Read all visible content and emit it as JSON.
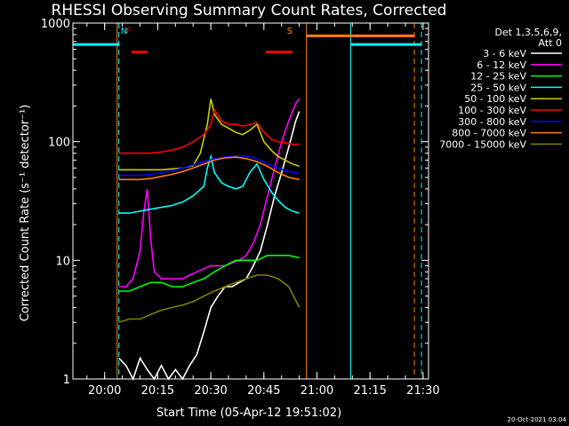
{
  "chart_data": {
    "type": "line",
    "title": "RHESSI Observing Summary Count Rates, Corrected",
    "xlabel": "Start Time (05-Apr-12 19:51:02)",
    "ylabel": "Corrected Count Rate (s⁻¹ detector⁻¹)",
    "yscale": "log",
    "ylim": [
      1,
      1000
    ],
    "xlim_minutes_after_start": [
      0,
      100.5
    ],
    "x_ticks": [
      "20:00",
      "20:15",
      "20:30",
      "20:45",
      "21:00",
      "21:15",
      "21:30"
    ],
    "x_tick_minutes": [
      8.97,
      23.97,
      38.97,
      53.97,
      68.97,
      83.97,
      98.97
    ],
    "y_ticks": [
      "1",
      "10",
      "100",
      "1000"
    ],
    "y_tick_values": [
      1,
      10,
      100,
      1000
    ],
    "legend_title": [
      "Det 1,3,5,6,9,",
      "Att 0"
    ],
    "legend_position": "right",
    "footer_date": "20-Oct-2021 03:04",
    "markers": [
      {
        "label": "N",
        "color": "#00ffff",
        "x": 13.5
      },
      {
        "label": "F",
        "color": "#ff0000",
        "x": 15.0
      },
      {
        "label": "S",
        "color": "#ff8000",
        "x": 60.5
      }
    ],
    "vertical_lines": [
      {
        "x": 0.0,
        "color": "#00ffff",
        "style": "solid"
      },
      {
        "x": 13.0,
        "color": "#00ffff",
        "style": "dashed"
      },
      {
        "x": 12.5,
        "color": "#ff8000",
        "style": "solid"
      },
      {
        "x": 66.0,
        "color": "#ff8000",
        "style": "solid"
      },
      {
        "x": 78.5,
        "color": "#00ffff",
        "style": "solid"
      },
      {
        "x": 96.5,
        "color": "#ff8000",
        "style": "dashed"
      },
      {
        "x": 98.5,
        "color": "#00ffff",
        "style": "dashed"
      }
    ],
    "state_bars": [
      {
        "color": "#00ffff",
        "y": 660,
        "segments": [
          [
            0,
            13
          ],
          [
            78.5,
            98.5
          ]
        ]
      },
      {
        "color": "#ff8000",
        "y": 780,
        "segments": [
          [
            66,
            96.5
          ]
        ]
      },
      {
        "color": "#ff0000",
        "y": 570,
        "segments": [
          [
            16.5,
            21.0
          ],
          [
            54.5,
            62.0
          ]
        ]
      }
    ],
    "series": [
      {
        "name": "3 - 6 keV",
        "color": "#ffffff",
        "x": [
          13,
          15,
          17,
          19,
          21,
          23,
          25,
          27,
          29,
          31,
          33,
          35,
          37,
          39,
          41,
          43,
          45,
          47,
          49,
          51,
          53,
          55,
          57,
          59,
          61,
          63,
          64
        ],
        "y": [
          1.5,
          1.3,
          1.0,
          1.5,
          1.2,
          1.0,
          1.3,
          1.0,
          1.2,
          1.0,
          1.3,
          1.6,
          2.5,
          4,
          5,
          6,
          6,
          6.5,
          7,
          9,
          12,
          20,
          35,
          55,
          90,
          150,
          180
        ]
      },
      {
        "name": "6 - 12 keV",
        "color": "#ff00ff",
        "x": [
          13,
          15,
          17,
          19,
          20,
          21,
          22,
          23,
          25,
          27,
          29,
          31,
          33,
          35,
          37,
          39,
          41,
          43,
          45,
          47,
          49,
          51,
          53,
          55,
          57,
          59,
          61,
          63,
          64
        ],
        "y": [
          6,
          6,
          7,
          12,
          25,
          40,
          15,
          8,
          7,
          7,
          7,
          7,
          7.5,
          8,
          8.5,
          9,
          9,
          9,
          9.5,
          10,
          11,
          14,
          20,
          35,
          60,
          100,
          150,
          210,
          230
        ]
      },
      {
        "name": "12 - 25 keV",
        "color": "#00ff00",
        "x": [
          13,
          16,
          19,
          22,
          25,
          28,
          31,
          34,
          37,
          40,
          43,
          46,
          49,
          52,
          55,
          58,
          61,
          64
        ],
        "y": [
          5.5,
          5.5,
          6,
          6.5,
          6.5,
          6,
          6,
          6.5,
          7,
          8,
          9,
          10,
          10,
          10,
          11,
          11,
          11,
          10.5
        ]
      },
      {
        "name": "25 - 50 keV",
        "color": "#00ffff",
        "x": [
          13,
          16,
          19,
          22,
          25,
          28,
          31,
          34,
          37,
          38,
          39,
          40,
          42,
          44,
          46,
          48,
          50,
          52,
          54,
          56,
          58,
          60,
          62,
          64
        ],
        "y": [
          25,
          25,
          26,
          27,
          28,
          29,
          31,
          35,
          42,
          60,
          75,
          55,
          45,
          42,
          40,
          42,
          55,
          65,
          48,
          38,
          32,
          28,
          26,
          25
        ]
      },
      {
        "name": "50 - 100 keV",
        "color": "#cccc00",
        "x": [
          13,
          16,
          19,
          22,
          25,
          28,
          31,
          34,
          36,
          38,
          39,
          40,
          42,
          44,
          46,
          48,
          50,
          52,
          54,
          56,
          58,
          60,
          62,
          64
        ],
        "y": [
          58,
          58,
          58,
          58,
          58,
          59,
          60,
          63,
          80,
          140,
          230,
          170,
          140,
          130,
          120,
          115,
          125,
          140,
          100,
          85,
          75,
          70,
          65,
          62
        ]
      },
      {
        "name": "100 - 300 keV",
        "color": "#ff0000",
        "x": [
          13,
          16,
          19,
          22,
          25,
          28,
          31,
          34,
          37,
          39,
          40,
          42,
          44,
          46,
          48,
          50,
          52,
          54,
          56,
          58,
          60,
          62,
          64
        ],
        "y": [
          80,
          80,
          80,
          80,
          82,
          85,
          90,
          100,
          115,
          140,
          185,
          150,
          140,
          140,
          135,
          140,
          145,
          120,
          105,
          100,
          98,
          95,
          95
        ]
      },
      {
        "name": "300 - 800 keV",
        "color": "#0000ff",
        "x": [
          13,
          16,
          19,
          22,
          25,
          28,
          31,
          34,
          37,
          40,
          43,
          46,
          49,
          52,
          55,
          58,
          61,
          64
        ],
        "y": [
          52,
          52,
          52,
          53,
          55,
          57,
          60,
          64,
          68,
          72,
          74,
          76,
          76,
          72,
          65,
          60,
          56,
          54
        ]
      },
      {
        "name": "800 - 7000 keV",
        "color": "#ff8000",
        "x": [
          13,
          16,
          19,
          22,
          25,
          28,
          31,
          34,
          37,
          40,
          43,
          46,
          49,
          52,
          55,
          58,
          61,
          64
        ],
        "y": [
          48,
          48,
          48,
          49,
          51,
          53,
          56,
          60,
          65,
          70,
          73,
          74,
          72,
          68,
          62,
          55,
          50,
          48
        ]
      },
      {
        "name": "7000 - 15000 keV",
        "color": "#808000",
        "x": [
          13,
          16,
          19,
          22,
          25,
          28,
          31,
          34,
          37,
          40,
          43,
          46,
          49,
          52,
          55,
          58,
          61,
          64
        ],
        "y": [
          3,
          3.2,
          3.2,
          3.5,
          3.8,
          4,
          4.2,
          4.5,
          5,
          5.5,
          6,
          6.5,
          7,
          7.5,
          7.5,
          7,
          6,
          4
        ]
      }
    ]
  }
}
